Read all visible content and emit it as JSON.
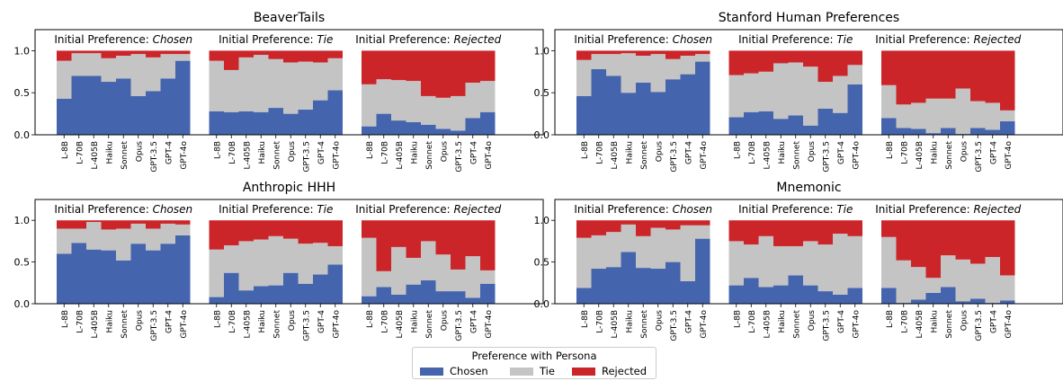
{
  "colors": {
    "Chosen": "#4464ad",
    "Tie": "#c4c4c4",
    "Rejected": "#cc2529"
  },
  "legend": {
    "title": "Preference with Persona",
    "items": [
      {
        "label": "Chosen",
        "color": "#4464ad"
      },
      {
        "label": "Tie",
        "color": "#c4c4c4"
      },
      {
        "label": "Rejected",
        "color": "#cc2529"
      }
    ]
  },
  "chart_data": [
    {
      "type": "bar",
      "stacked": true,
      "title": "BeaverTails",
      "yticks": [
        "0.0",
        "0.5",
        "1.0"
      ],
      "ylim": [
        0,
        1.25
      ],
      "categories": [
        "L-8B",
        "L-70B",
        "L-405B",
        "Haiku",
        "Sonnet",
        "Opus",
        "GPT-3.5",
        "GPT-4",
        "GPT-4o"
      ],
      "groups": [
        {
          "label_prefix": "Initial Preference: ",
          "label_emph": "Chosen",
          "chosen": [
            0.43,
            0.7,
            0.7,
            0.63,
            0.67,
            0.46,
            0.52,
            0.67,
            0.88
          ],
          "tie": [
            0.45,
            0.27,
            0.27,
            0.28,
            0.27,
            0.5,
            0.4,
            0.29,
            0.08
          ],
          "rejected": [
            0.12,
            0.03,
            0.03,
            0.09,
            0.06,
            0.04,
            0.08,
            0.04,
            0.04
          ]
        },
        {
          "label_prefix": "Initial Preference: ",
          "label_emph": "Tie",
          "chosen": [
            0.28,
            0.27,
            0.28,
            0.27,
            0.32,
            0.25,
            0.3,
            0.41,
            0.53
          ],
          "tie": [
            0.6,
            0.5,
            0.64,
            0.68,
            0.58,
            0.61,
            0.57,
            0.45,
            0.38
          ],
          "rejected": [
            0.12,
            0.23,
            0.08,
            0.05,
            0.1,
            0.14,
            0.13,
            0.14,
            0.09
          ]
        },
        {
          "label_prefix": "Initial Preference: ",
          "label_emph": "Rejected",
          "chosen": [
            0.1,
            0.25,
            0.17,
            0.15,
            0.12,
            0.07,
            0.05,
            0.2,
            0.27
          ],
          "tie": [
            0.5,
            0.41,
            0.48,
            0.49,
            0.34,
            0.37,
            0.41,
            0.42,
            0.37
          ],
          "rejected": [
            0.4,
            0.34,
            0.35,
            0.36,
            0.54,
            0.56,
            0.54,
            0.38,
            0.36
          ]
        }
      ]
    },
    {
      "type": "bar",
      "stacked": true,
      "title": "Stanford Human Preferences",
      "yticks": [
        "0.0",
        "0.5",
        "1.0"
      ],
      "ylim": [
        0,
        1.25
      ],
      "categories": [
        "L-8B",
        "L-70B",
        "L-405B",
        "Haiku",
        "Sonnet",
        "Opus",
        "GPT-3.5",
        "GPT-4",
        "GPT-4o"
      ],
      "groups": [
        {
          "label_prefix": "Initial Preference: ",
          "label_emph": "Chosen",
          "chosen": [
            0.46,
            0.78,
            0.7,
            0.5,
            0.62,
            0.51,
            0.66,
            0.72,
            0.87
          ],
          "tie": [
            0.43,
            0.18,
            0.26,
            0.47,
            0.32,
            0.45,
            0.24,
            0.22,
            0.09
          ],
          "rejected": [
            0.11,
            0.04,
            0.04,
            0.03,
            0.06,
            0.04,
            0.1,
            0.06,
            0.04
          ]
        },
        {
          "label_prefix": "Initial Preference: ",
          "label_emph": "Tie",
          "chosen": [
            0.21,
            0.27,
            0.28,
            0.19,
            0.23,
            0.11,
            0.31,
            0.26,
            0.6
          ],
          "tie": [
            0.5,
            0.46,
            0.47,
            0.66,
            0.63,
            0.7,
            0.32,
            0.44,
            0.23
          ],
          "rejected": [
            0.29,
            0.27,
            0.25,
            0.15,
            0.14,
            0.19,
            0.37,
            0.3,
            0.17
          ]
        },
        {
          "label_prefix": "Initial Preference: ",
          "label_emph": "Rejected",
          "chosen": [
            0.2,
            0.08,
            0.07,
            0.02,
            0.08,
            0.01,
            0.08,
            0.06,
            0.16
          ],
          "tie": [
            0.39,
            0.28,
            0.31,
            0.41,
            0.35,
            0.54,
            0.32,
            0.32,
            0.13
          ],
          "rejected": [
            0.41,
            0.64,
            0.62,
            0.57,
            0.57,
            0.45,
            0.6,
            0.62,
            0.71
          ]
        }
      ]
    },
    {
      "type": "bar",
      "stacked": true,
      "title": "Anthropic HHH",
      "yticks": [
        "0.0",
        "0.5",
        "1.0"
      ],
      "ylim": [
        0,
        1.25
      ],
      "categories": [
        "L-8B",
        "L-70B",
        "L-405B",
        "Haiku",
        "Sonnet",
        "Opus",
        "GPT-3.5",
        "GPT-4",
        "GPT-4o"
      ],
      "groups": [
        {
          "label_prefix": "Initial Preference: ",
          "label_emph": "Chosen",
          "chosen": [
            0.6,
            0.73,
            0.65,
            0.64,
            0.52,
            0.72,
            0.64,
            0.72,
            0.82
          ],
          "tie": [
            0.3,
            0.17,
            0.33,
            0.25,
            0.38,
            0.24,
            0.26,
            0.24,
            0.13
          ],
          "rejected": [
            0.1,
            0.1,
            0.02,
            0.11,
            0.1,
            0.04,
            0.1,
            0.04,
            0.05
          ]
        },
        {
          "label_prefix": "Initial Preference: ",
          "label_emph": "Tie",
          "chosen": [
            0.08,
            0.37,
            0.16,
            0.21,
            0.22,
            0.37,
            0.24,
            0.35,
            0.47
          ],
          "tie": [
            0.57,
            0.33,
            0.59,
            0.56,
            0.59,
            0.41,
            0.48,
            0.38,
            0.22
          ],
          "rejected": [
            0.35,
            0.3,
            0.25,
            0.23,
            0.19,
            0.22,
            0.28,
            0.27,
            0.31
          ]
        },
        {
          "label_prefix": "Initial Preference: ",
          "label_emph": "Rejected",
          "chosen": [
            0.09,
            0.2,
            0.11,
            0.23,
            0.28,
            0.15,
            0.15,
            0.07,
            0.24
          ],
          "tie": [
            0.7,
            0.19,
            0.57,
            0.32,
            0.47,
            0.44,
            0.26,
            0.5,
            0.16
          ],
          "rejected": [
            0.21,
            0.61,
            0.32,
            0.45,
            0.25,
            0.41,
            0.59,
            0.43,
            0.6
          ]
        }
      ]
    },
    {
      "type": "bar",
      "stacked": true,
      "title": "Mnemonic",
      "yticks": [
        "0.0",
        "0.5",
        "1.0"
      ],
      "ylim": [
        0,
        1.25
      ],
      "categories": [
        "L-8B",
        "L-70B",
        "L-405B",
        "Haiku",
        "Sonnet",
        "Opus",
        "GPT-3.5",
        "GPT-4",
        "GPT-4o"
      ],
      "groups": [
        {
          "label_prefix": "Initial Preference: ",
          "label_emph": "Chosen",
          "chosen": [
            0.19,
            0.42,
            0.44,
            0.62,
            0.43,
            0.42,
            0.5,
            0.27,
            0.78
          ],
          "tie": [
            0.6,
            0.4,
            0.42,
            0.33,
            0.38,
            0.49,
            0.39,
            0.67,
            0.16
          ],
          "rejected": [
            0.21,
            0.18,
            0.14,
            0.05,
            0.19,
            0.09,
            0.11,
            0.06,
            0.06
          ]
        },
        {
          "label_prefix": "Initial Preference: ",
          "label_emph": "Tie",
          "chosen": [
            0.22,
            0.31,
            0.2,
            0.22,
            0.34,
            0.22,
            0.15,
            0.11,
            0.19
          ],
          "tie": [
            0.53,
            0.4,
            0.61,
            0.47,
            0.35,
            0.53,
            0.56,
            0.73,
            0.62
          ],
          "rejected": [
            0.25,
            0.29,
            0.19,
            0.31,
            0.31,
            0.25,
            0.29,
            0.16,
            0.19
          ]
        },
        {
          "label_prefix": "Initial Preference: ",
          "label_emph": "Rejected",
          "chosen": [
            0.19,
            0.01,
            0.05,
            0.13,
            0.2,
            0.03,
            0.06,
            0.01,
            0.04
          ],
          "tie": [
            0.61,
            0.51,
            0.39,
            0.18,
            0.38,
            0.5,
            0.42,
            0.55,
            0.3
          ],
          "rejected": [
            0.2,
            0.48,
            0.56,
            0.69,
            0.42,
            0.47,
            0.52,
            0.44,
            0.66
          ]
        }
      ]
    }
  ]
}
